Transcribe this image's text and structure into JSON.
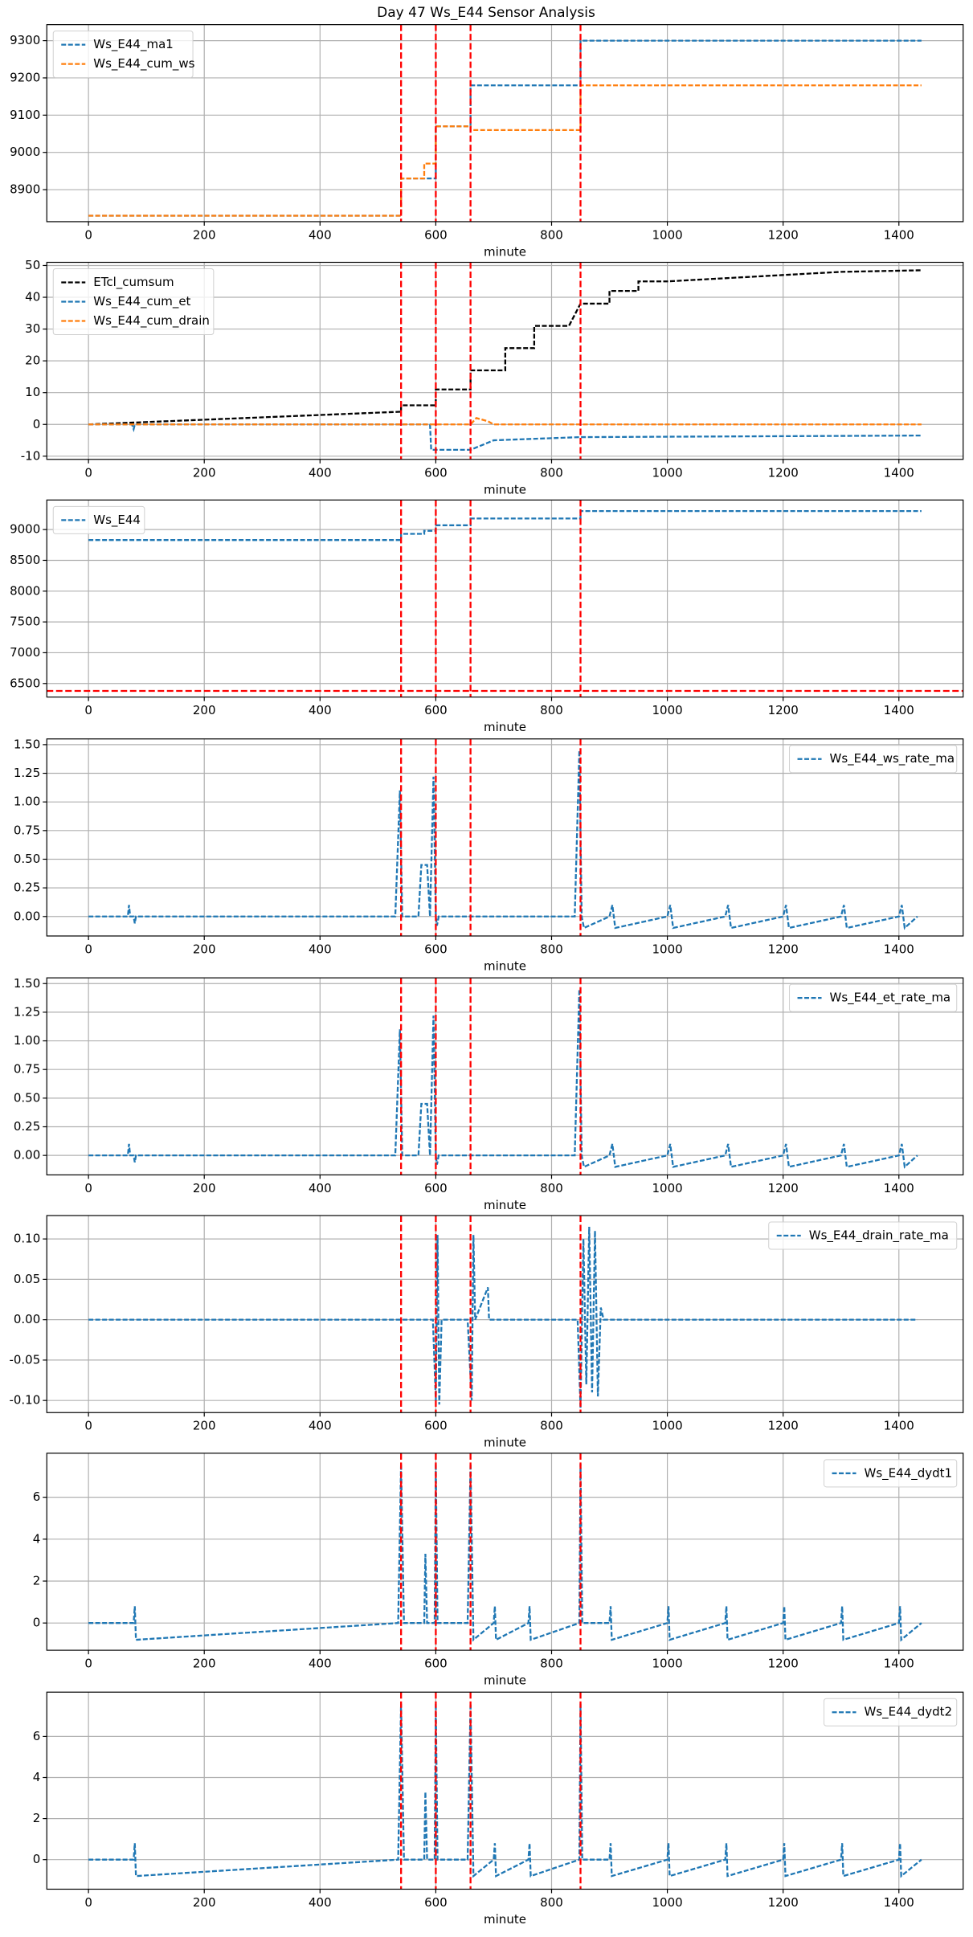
{
  "title": "Day 47 Ws_E44 Sensor Analysis",
  "chart_data": [
    {
      "type": "line",
      "xlabel": "minute",
      "xlim": [
        -72,
        1511
      ],
      "xticks": [
        0,
        200,
        400,
        600,
        800,
        1000,
        1200,
        1400
      ],
      "ylim": [
        8814,
        9343
      ],
      "yticks": [
        8900,
        9000,
        9100,
        9200,
        9300
      ],
      "grid": true,
      "legend": "upper left",
      "linestyle": "dashed",
      "vlines": [
        540,
        600,
        660,
        850
      ],
      "vline_color": "#ff0000",
      "hlines": [],
      "series": [
        {
          "name": "Ws_E44_ma1",
          "color": "#1f77b4",
          "x": [
            0,
            540,
            540,
            600,
            600,
            660,
            660,
            850,
            850,
            1439
          ],
          "values": [
            8830,
            8830,
            8930,
            8930,
            9070,
            9070,
            9180,
            9180,
            9300,
            9300
          ]
        },
        {
          "name": "Ws_E44_cum_ws",
          "color": "#ff7f0e",
          "x": [
            0,
            540,
            540,
            580,
            580,
            600,
            600,
            660,
            660,
            850,
            850,
            1439
          ],
          "values": [
            8830,
            8830,
            8930,
            8930,
            8970,
            8970,
            9070,
            9070,
            9060,
            9060,
            9180,
            9180
          ]
        }
      ]
    },
    {
      "type": "line",
      "xlabel": "minute",
      "xlim": [
        -72,
        1511
      ],
      "xticks": [
        0,
        200,
        400,
        600,
        800,
        1000,
        1200,
        1400
      ],
      "ylim": [
        -11,
        51
      ],
      "yticks": [
        -10,
        0,
        10,
        20,
        30,
        40,
        50
      ],
      "grid": true,
      "legend": "upper left",
      "linestyle": "dashed",
      "vlines": [
        540,
        600,
        660,
        850
      ],
      "vline_color": "#ff0000",
      "hlines": [],
      "series": [
        {
          "name": "ETcl_cumsum",
          "color": "#000000",
          "x": [
            0,
            540,
            540,
            600,
            600,
            660,
            660,
            720,
            720,
            770,
            770,
            830,
            850,
            900,
            900,
            950,
            950,
            1000,
            1100,
            1200,
            1300,
            1439
          ],
          "values": [
            0,
            4,
            6,
            6,
            11,
            11,
            17,
            17,
            24,
            24,
            31,
            31,
            38,
            38,
            42,
            42,
            45,
            45,
            46,
            47,
            48,
            48.5
          ]
        },
        {
          "name": "Ws_E44_cum_et",
          "color": "#1f77b4",
          "x": [
            0,
            75,
            78,
            80,
            590,
            592,
            660,
            700,
            850,
            1439
          ],
          "values": [
            0,
            0,
            -1.5,
            0,
            0,
            -8,
            -8,
            -5,
            -4,
            -3.5
          ]
        },
        {
          "name": "Ws_E44_cum_drain",
          "color": "#ff7f0e",
          "x": [
            0,
            660,
            670,
            690,
            700,
            1439
          ],
          "values": [
            0,
            0,
            2,
            1,
            0,
            0
          ]
        }
      ]
    },
    {
      "type": "line",
      "xlabel": "minute",
      "xlim": [
        -72,
        1511
      ],
      "xticks": [
        0,
        200,
        400,
        600,
        800,
        1000,
        1200,
        1400
      ],
      "ylim": [
        6280,
        9480
      ],
      "yticks": [
        6500,
        7000,
        7500,
        8000,
        8500,
        9000
      ],
      "grid": true,
      "legend": "upper left",
      "linestyle": "dashed",
      "vlines": [
        540,
        600,
        660,
        850
      ],
      "vline_color": "#ff0000",
      "hlines": [
        6380
      ],
      "series": [
        {
          "name": "Ws_E44",
          "color": "#1f77b4",
          "x": [
            0,
            540,
            540,
            580,
            580,
            600,
            600,
            660,
            660,
            850,
            850,
            1439
          ],
          "values": [
            8830,
            8830,
            8930,
            8930,
            8980,
            8980,
            9070,
            9070,
            9180,
            9180,
            9300,
            9300
          ]
        }
      ]
    },
    {
      "type": "line",
      "xlabel": "minute",
      "xlim": [
        -72,
        1511
      ],
      "xticks": [
        0,
        200,
        400,
        600,
        800,
        1000,
        1200,
        1400
      ],
      "ylim": [
        -0.17,
        1.55
      ],
      "yticks": [
        {
          "value": 0,
          "label": "0.00"
        },
        {
          "value": 0.25,
          "label": "0.25"
        },
        {
          "value": 0.5,
          "label": "0.50"
        },
        {
          "value": 0.75,
          "label": "0.75"
        },
        {
          "value": 1,
          "label": "1.00"
        },
        {
          "value": 1.25,
          "label": "1.25"
        },
        {
          "value": 1.5,
          "label": "1.50"
        }
      ],
      "grid": true,
      "legend": "upper right",
      "linestyle": "dashed",
      "vlines": [
        540,
        600,
        660,
        850
      ],
      "vline_color": "#ff0000",
      "hlines": [],
      "series": [
        {
          "name": "Ws_E44_ws_rate_ma",
          "color": "#1f77b4",
          "x": [
            0,
            68,
            70,
            72,
            78,
            80,
            82,
            530,
            538,
            542,
            570,
            575,
            585,
            590,
            596,
            600,
            602,
            605,
            840,
            848,
            852,
            856,
            900,
            905,
            910,
            1000,
            1005,
            1010,
            1100,
            1105,
            1110,
            1200,
            1205,
            1210,
            1300,
            1305,
            1310,
            1400,
            1405,
            1410,
            1432
          ],
          "values": [
            0,
            0,
            0.1,
            0,
            0,
            -0.06,
            0,
            0,
            1.1,
            0,
            0,
            0.45,
            0.45,
            0,
            1.22,
            0,
            -0.08,
            0,
            0,
            1.45,
            0,
            -0.1,
            0,
            0.1,
            -0.1,
            0,
            0.1,
            -0.1,
            0,
            0.1,
            -0.1,
            0,
            0.1,
            -0.1,
            0,
            0.1,
            -0.1,
            0,
            0.1,
            -0.1,
            0
          ]
        }
      ]
    },
    {
      "type": "line",
      "xlabel": "minute",
      "xlim": [
        -72,
        1511
      ],
      "xticks": [
        0,
        200,
        400,
        600,
        800,
        1000,
        1200,
        1400
      ],
      "ylim": [
        -0.17,
        1.55
      ],
      "yticks": [
        {
          "value": 0,
          "label": "0.00"
        },
        {
          "value": 0.25,
          "label": "0.25"
        },
        {
          "value": 0.5,
          "label": "0.50"
        },
        {
          "value": 0.75,
          "label": "0.75"
        },
        {
          "value": 1,
          "label": "1.00"
        },
        {
          "value": 1.25,
          "label": "1.25"
        },
        {
          "value": 1.5,
          "label": "1.50"
        }
      ],
      "grid": true,
      "legend": "upper right",
      "linestyle": "dashed",
      "vlines": [
        540,
        600,
        660,
        850
      ],
      "vline_color": "#ff0000",
      "hlines": [],
      "series": [
        {
          "name": "Ws_E44_et_rate_ma",
          "color": "#1f77b4",
          "x": [
            0,
            68,
            70,
            72,
            78,
            80,
            82,
            530,
            538,
            542,
            570,
            575,
            585,
            590,
            596,
            600,
            602,
            605,
            840,
            848,
            852,
            856,
            900,
            905,
            910,
            1000,
            1005,
            1010,
            1100,
            1105,
            1110,
            1200,
            1205,
            1210,
            1300,
            1305,
            1310,
            1400,
            1405,
            1410,
            1432
          ],
          "values": [
            0,
            0,
            0.1,
            0,
            0,
            -0.06,
            0,
            0,
            1.1,
            0,
            0,
            0.45,
            0.45,
            0,
            1.22,
            0,
            -0.08,
            0,
            0,
            1.45,
            0,
            -0.1,
            0,
            0.1,
            -0.1,
            0,
            0.1,
            -0.1,
            0,
            0.1,
            -0.1,
            0,
            0.1,
            -0.1,
            0,
            0.1,
            -0.1,
            0,
            0.1,
            -0.1,
            0
          ]
        }
      ]
    },
    {
      "type": "line",
      "xlabel": "minute",
      "xlim": [
        -72,
        1511
      ],
      "xticks": [
        0,
        200,
        400,
        600,
        800,
        1000,
        1200,
        1400
      ],
      "ylim": [
        -0.115,
        0.129
      ],
      "yticks": [
        {
          "value": -0.1,
          "label": "-0.10"
        },
        {
          "value": -0.05,
          "label": "-0.05"
        },
        {
          "value": 0,
          "label": "0.00"
        },
        {
          "value": 0.05,
          "label": "0.05"
        },
        {
          "value": 0.1,
          "label": "0.10"
        }
      ],
      "grid": true,
      "legend": "upper right",
      "linestyle": "dashed",
      "vlines": [
        540,
        600,
        660,
        850
      ],
      "vline_color": "#ff0000",
      "hlines": [],
      "series": [
        {
          "name": "Ws_E44_drain_rate_ma",
          "color": "#1f77b4",
          "x": [
            0,
            595,
            600,
            603,
            606,
            610,
            655,
            662,
            665,
            668,
            690,
            692,
            845,
            850,
            855,
            860,
            865,
            870,
            875,
            880,
            885,
            890,
            1432
          ],
          "values": [
            0,
            0,
            -0.1,
            0.105,
            -0.105,
            0,
            0,
            -0.1,
            0.105,
            0,
            0.04,
            0,
            0,
            -0.11,
            0.1,
            -0.08,
            0.115,
            -0.09,
            0.11,
            -0.095,
            0.015,
            0,
            0
          ]
        }
      ]
    },
    {
      "type": "line",
      "xlabel": "minute",
      "xlim": [
        -72,
        1511
      ],
      "xticks": [
        0,
        200,
        400,
        600,
        800,
        1000,
        1200,
        1400
      ],
      "ylim": [
        -1.3,
        8.1
      ],
      "yticks": [
        0,
        2,
        4,
        6
      ],
      "grid": true,
      "legend": "upper right",
      "linestyle": "dashed",
      "vlines": [
        540,
        600,
        660,
        850
      ],
      "vline_color": "#ff0000",
      "hlines": [],
      "series": [
        {
          "name": "Ws_E44_dydt1",
          "color": "#1f77b4",
          "x": [
            0,
            78,
            80,
            82,
            535,
            540,
            545,
            580,
            582,
            585,
            598,
            600,
            603,
            655,
            660,
            665,
            700,
            702,
            704,
            760,
            762,
            764,
            848,
            850,
            853,
            900,
            902,
            904,
            1000,
            1002,
            1004,
            1100,
            1102,
            1104,
            1200,
            1202,
            1204,
            1300,
            1302,
            1304,
            1400,
            1402,
            1404,
            1439
          ],
          "values": [
            0,
            0,
            0.8,
            -0.8,
            0,
            7.6,
            0,
            0,
            3.3,
            0,
            0,
            7.6,
            0,
            0,
            7.6,
            -0.8,
            0,
            0.8,
            -0.8,
            0,
            0.8,
            -0.8,
            0,
            7.6,
            0,
            0,
            0.8,
            -0.8,
            0,
            0.8,
            -0.8,
            0,
            0.8,
            -0.8,
            0,
            0.8,
            -0.8,
            0,
            0.8,
            -0.8,
            0,
            0.8,
            -0.8,
            0
          ]
        }
      ]
    },
    {
      "type": "line",
      "xlabel": "minute",
      "xlim": [
        -72,
        1511
      ],
      "xticks": [
        0,
        200,
        400,
        600,
        800,
        1000,
        1200,
        1400
      ],
      "ylim": [
        -1.44,
        8.16
      ],
      "yticks": [
        0,
        2,
        4,
        6
      ],
      "grid": true,
      "legend": "upper right",
      "linestyle": "dashed",
      "vlines": [
        540,
        600,
        660,
        850
      ],
      "vline_color": "#ff0000",
      "hlines": [],
      "series": [
        {
          "name": "Ws_E44_dydt2",
          "color": "#1f77b4",
          "x": [
            0,
            78,
            80,
            82,
            535,
            540,
            545,
            580,
            582,
            585,
            598,
            600,
            603,
            655,
            660,
            665,
            700,
            702,
            704,
            760,
            762,
            764,
            848,
            850,
            853,
            900,
            902,
            904,
            1000,
            1002,
            1004,
            1100,
            1102,
            1104,
            1200,
            1202,
            1204,
            1300,
            1302,
            1304,
            1400,
            1402,
            1404,
            1439
          ],
          "values": [
            0,
            0,
            0.8,
            -0.8,
            0,
            7.6,
            0,
            0,
            3.3,
            0,
            0,
            7.6,
            0,
            0,
            7.6,
            -0.8,
            0,
            0.8,
            -0.8,
            0,
            0.8,
            -0.8,
            0,
            7.6,
            0,
            0,
            0.8,
            -0.8,
            0,
            0.8,
            -0.8,
            0,
            0.8,
            -0.8,
            0,
            0.8,
            -0.8,
            0,
            0.8,
            -0.8,
            0,
            0.8,
            -0.8,
            0
          ]
        }
      ]
    }
  ]
}
